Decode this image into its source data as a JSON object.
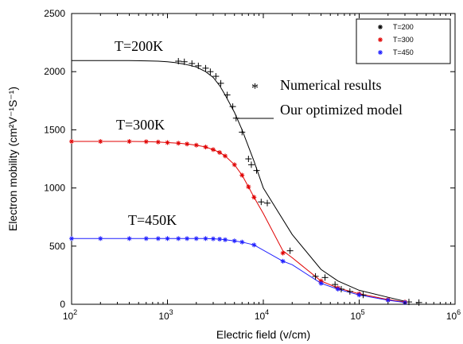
{
  "chart_data": {
    "type": "line",
    "x_scale": "log",
    "xlim": [
      100,
      1000000
    ],
    "ylim": [
      0,
      2500
    ],
    "grid": false,
    "xlabel": "Electric field (v/cm)",
    "ylabel": "Electron mobility (cm²V⁻¹S⁻¹)",
    "x_ticks": [
      {
        "value": 100,
        "base": "10",
        "exp": "2"
      },
      {
        "value": 1000,
        "base": "10",
        "exp": "3"
      },
      {
        "value": 10000,
        "base": "10",
        "exp": "4"
      },
      {
        "value": 100000,
        "base": "10",
        "exp": "5"
      },
      {
        "value": 1000000,
        "base": "10",
        "exp": "6"
      }
    ],
    "y_ticks": [
      0,
      500,
      1000,
      1500,
      2000,
      2500
    ],
    "legend": {
      "placement": "top-right",
      "entries": [
        {
          "label": "T=200",
          "color": "#000000"
        },
        {
          "label": "T=300",
          "color": "#e00000"
        },
        {
          "label": "T=450",
          "color": "#1f1fff"
        }
      ]
    },
    "annotations": {
      "t200": "T=200K",
      "t300": "T=300K",
      "t450": "T=450K",
      "star_symbol": "*",
      "numerical": "Numerical results",
      "model": "Our optimized model"
    },
    "series": [
      {
        "name": "T=200",
        "color": "#000000",
        "marker": "*",
        "points": [
          [
            100,
            2095
          ],
          [
            200,
            2095
          ],
          [
            400,
            2095
          ],
          [
            600,
            2093
          ],
          [
            800,
            2090
          ],
          [
            1000,
            2085
          ],
          [
            1200,
            2078
          ],
          [
            1500,
            2065
          ],
          [
            2000,
            2040
          ],
          [
            2500,
            2000
          ],
          [
            3000,
            1950
          ],
          [
            3500,
            1880
          ],
          [
            4000,
            1800
          ],
          [
            5000,
            1650
          ],
          [
            6000,
            1500
          ],
          [
            8000,
            1230
          ],
          [
            10000,
            1000
          ],
          [
            20000,
            600
          ],
          [
            40000,
            300
          ],
          [
            60000,
            200
          ],
          [
            100000,
            120
          ],
          [
            200000,
            60
          ],
          [
            300000,
            25
          ]
        ],
        "scatter": [
          [
            1300,
            2090
          ],
          [
            1500,
            2085
          ],
          [
            1800,
            2070
          ],
          [
            2100,
            2050
          ],
          [
            2500,
            2030
          ],
          [
            2800,
            2000
          ],
          [
            3200,
            1960
          ],
          [
            3600,
            1900
          ],
          [
            4200,
            1800
          ],
          [
            4800,
            1700
          ],
          [
            5200,
            1600
          ],
          [
            6000,
            1480
          ],
          [
            7000,
            1250
          ],
          [
            7500,
            1200
          ],
          [
            8500,
            1150
          ],
          [
            9500,
            880
          ],
          [
            11000,
            870
          ],
          [
            19000,
            460
          ],
          [
            35000,
            240
          ],
          [
            44000,
            230
          ],
          [
            56000,
            170
          ],
          [
            65000,
            130
          ],
          [
            80000,
            110
          ],
          [
            110000,
            80
          ],
          [
            330000,
            20
          ],
          [
            420000,
            15
          ]
        ]
      },
      {
        "name": "T=300",
        "color": "#e00000",
        "marker": "*",
        "points": [
          [
            100,
            1400
          ],
          [
            200,
            1400
          ],
          [
            400,
            1400
          ],
          [
            600,
            1398
          ],
          [
            800,
            1395
          ],
          [
            1000,
            1390
          ],
          [
            1300,
            1385
          ],
          [
            1600,
            1378
          ],
          [
            2000,
            1368
          ],
          [
            2500,
            1352
          ],
          [
            3000,
            1330
          ],
          [
            3500,
            1305
          ],
          [
            4000,
            1275
          ],
          [
            5000,
            1200
          ],
          [
            6000,
            1110
          ],
          [
            7000,
            1010
          ],
          [
            8000,
            920
          ],
          [
            10000,
            780
          ],
          [
            16000,
            460
          ],
          [
            20000,
            400
          ],
          [
            40000,
            200
          ],
          [
            60000,
            140
          ],
          [
            100000,
            90
          ],
          [
            200000,
            40
          ],
          [
            300000,
            20
          ]
        ],
        "scatter": [
          [
            100,
            1400
          ],
          [
            200,
            1400
          ],
          [
            400,
            1400
          ],
          [
            600,
            1398
          ],
          [
            800,
            1395
          ],
          [
            1000,
            1390
          ],
          [
            1300,
            1385
          ],
          [
            1600,
            1378
          ],
          [
            2000,
            1368
          ],
          [
            2500,
            1352
          ],
          [
            3000,
            1330
          ],
          [
            3500,
            1305
          ],
          [
            4000,
            1275
          ],
          [
            5000,
            1200
          ],
          [
            6000,
            1110
          ],
          [
            7000,
            1010
          ],
          [
            8000,
            920
          ],
          [
            16000,
            440
          ],
          [
            40000,
            200
          ],
          [
            60000,
            140
          ],
          [
            100000,
            90
          ],
          [
            200000,
            40
          ],
          [
            300000,
            20
          ]
        ]
      },
      {
        "name": "T=450",
        "color": "#1f1fff",
        "marker": "*",
        "points": [
          [
            100,
            565
          ],
          [
            200,
            565
          ],
          [
            400,
            565
          ],
          [
            600,
            565
          ],
          [
            800,
            565
          ],
          [
            1000,
            565
          ],
          [
            1300,
            565
          ],
          [
            1600,
            565
          ],
          [
            2000,
            565
          ],
          [
            2500,
            565
          ],
          [
            3000,
            563
          ],
          [
            3500,
            560
          ],
          [
            4000,
            555
          ],
          [
            5000,
            545
          ],
          [
            6000,
            535
          ],
          [
            8000,
            510
          ],
          [
            16000,
            370
          ],
          [
            20000,
            340
          ],
          [
            40000,
            180
          ],
          [
            60000,
            130
          ],
          [
            100000,
            80
          ],
          [
            200000,
            35
          ],
          [
            300000,
            15
          ]
        ],
        "scatter": [
          [
            100,
            565
          ],
          [
            200,
            565
          ],
          [
            400,
            565
          ],
          [
            600,
            565
          ],
          [
            800,
            565
          ],
          [
            1000,
            565
          ],
          [
            1300,
            565
          ],
          [
            1600,
            565
          ],
          [
            2000,
            565
          ],
          [
            2500,
            565
          ],
          [
            3000,
            563
          ],
          [
            3500,
            560
          ],
          [
            4000,
            555
          ],
          [
            5000,
            545
          ],
          [
            6000,
            535
          ],
          [
            8000,
            510
          ],
          [
            16000,
            370
          ],
          [
            40000,
            180
          ],
          [
            60000,
            130
          ],
          [
            100000,
            80
          ],
          [
            200000,
            35
          ],
          [
            300000,
            15
          ]
        ]
      }
    ]
  }
}
